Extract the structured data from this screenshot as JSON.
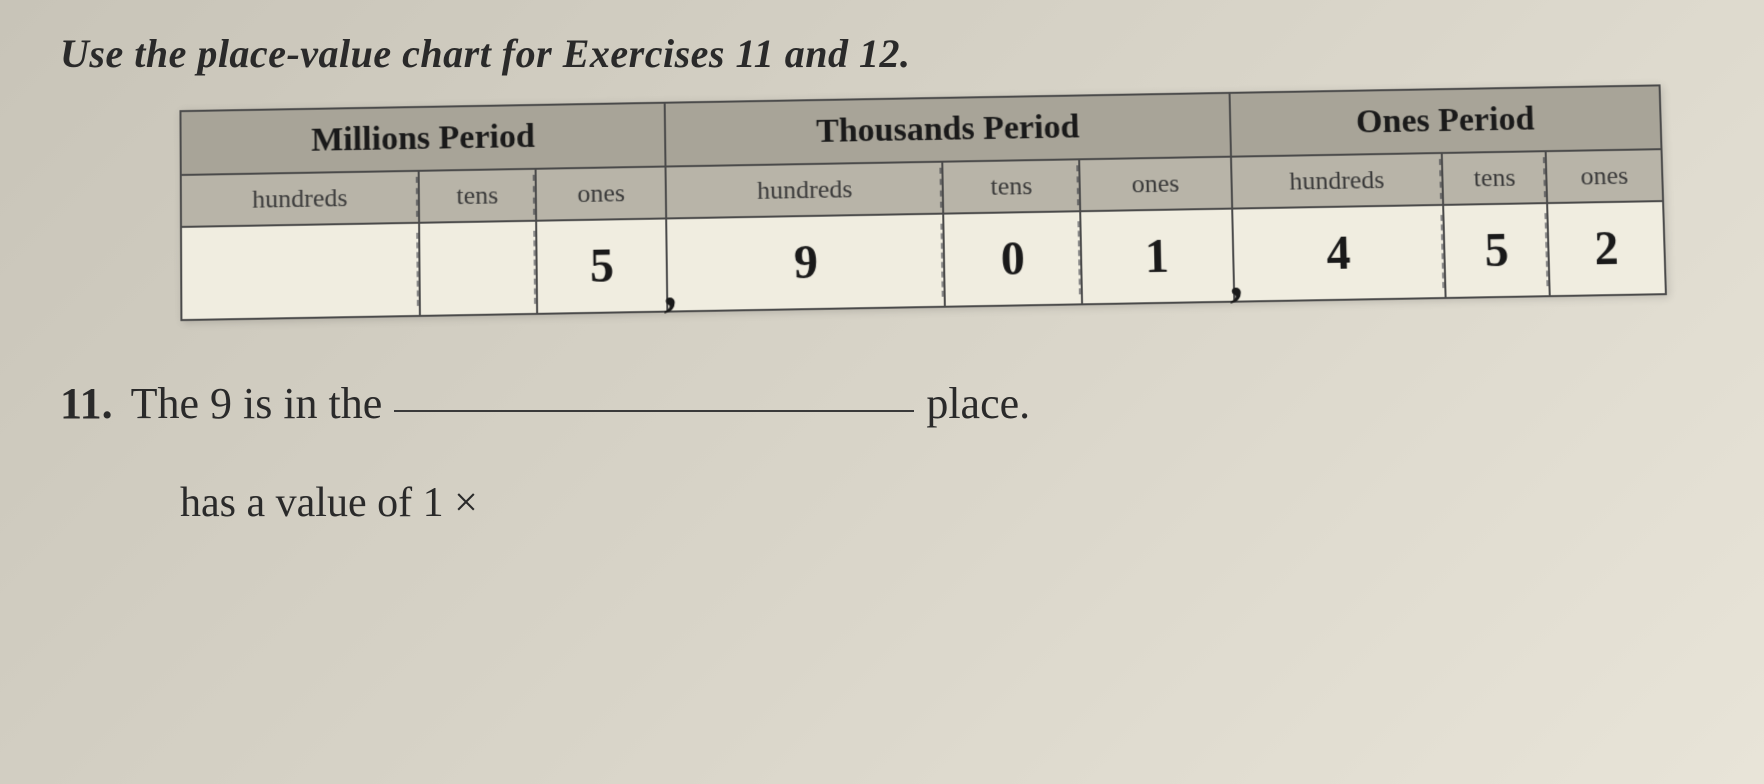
{
  "instruction": "Use the place-value chart for Exercises 11 and 12.",
  "chart": {
    "periods": [
      {
        "label": "Millions Period"
      },
      {
        "label": "Thousands Period"
      },
      {
        "label": "Ones Period"
      }
    ],
    "places": [
      {
        "label": "hundreds",
        "periodEnd": false
      },
      {
        "label": "tens",
        "periodEnd": false
      },
      {
        "label": "ones",
        "periodEnd": true
      },
      {
        "label": "hundreds",
        "periodEnd": false
      },
      {
        "label": "tens",
        "periodEnd": false
      },
      {
        "label": "ones",
        "periodEnd": true
      },
      {
        "label": "hundreds",
        "periodEnd": false
      },
      {
        "label": "tens",
        "periodEnd": false
      },
      {
        "label": "ones",
        "periodEnd": true
      }
    ],
    "values": [
      "",
      "",
      "5",
      "9",
      "0",
      "1",
      "4",
      "5",
      "2"
    ],
    "colors": {
      "period_header_bg": "#a8a498",
      "place_header_bg": "#b8b4a8",
      "value_cell_bg": "#f0ede0",
      "border_color": "#4a4a4a",
      "dash_color": "#8a8a8a"
    },
    "column_width_pct": 11.11
  },
  "question11": {
    "number": "11.",
    "prefix": "The 9 is in the",
    "suffix": "place."
  },
  "partial_text": "has a value of 1 ×"
}
